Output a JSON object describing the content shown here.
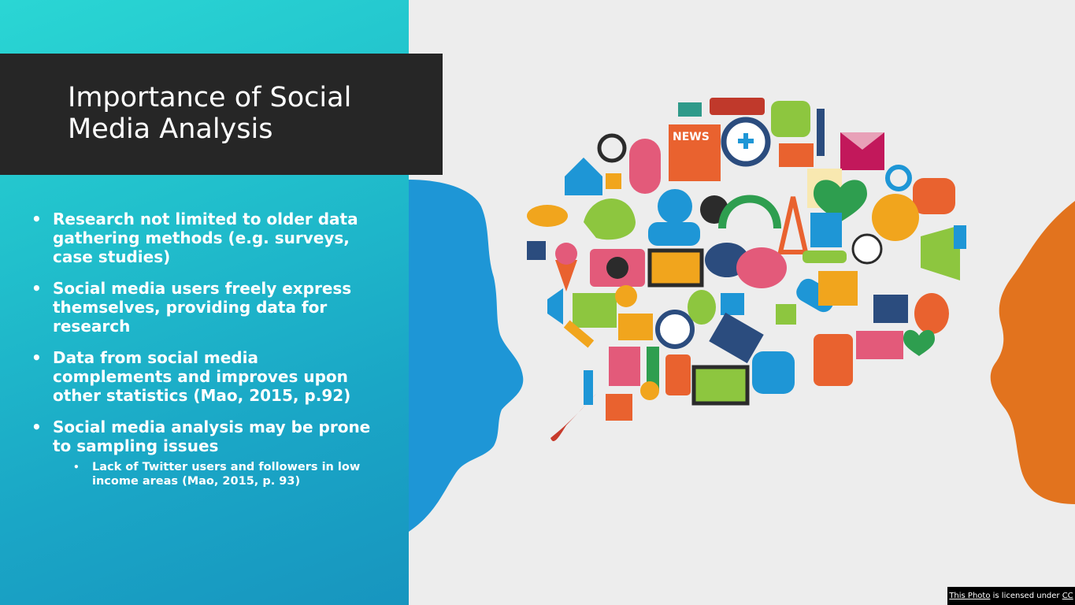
{
  "slide": {
    "title": "Importance of Social Media Analysis",
    "bullets": [
      "Research not limited to older data gathering methods (e.g. surveys, case studies)",
      "Social media users freely express themselves, providing data for research",
      "Data from social media complements and improves upon other statistics (Mao, 2015, p.92)",
      "Social media analysis may be prone to sampling issues"
    ],
    "sub_bullets": [
      "Lack of Twitter users and followers in low income areas (Mao, 2015, p. 93)"
    ]
  },
  "illustration": {
    "news_label": "NEWS",
    "icons": [
      "news-icon",
      "microphone-icon",
      "magnifier-icon",
      "car-icon",
      "envelope-icon",
      "home-icon",
      "camera-icon",
      "laptop-icon",
      "heart-icon",
      "globe-icon",
      "soccer-ball-icon",
      "megaphone-icon",
      "calendar-icon",
      "phone-icon",
      "thumbs-up-icon",
      "puzzle-icon",
      "bird-icon",
      "tower-icon"
    ],
    "colors": {
      "left_head": "#1e96d6",
      "right_head": "#e2731e"
    }
  },
  "credit": {
    "link_text": "This Photo",
    "mid_text": " is licensed under ",
    "license_text": "CC"
  }
}
